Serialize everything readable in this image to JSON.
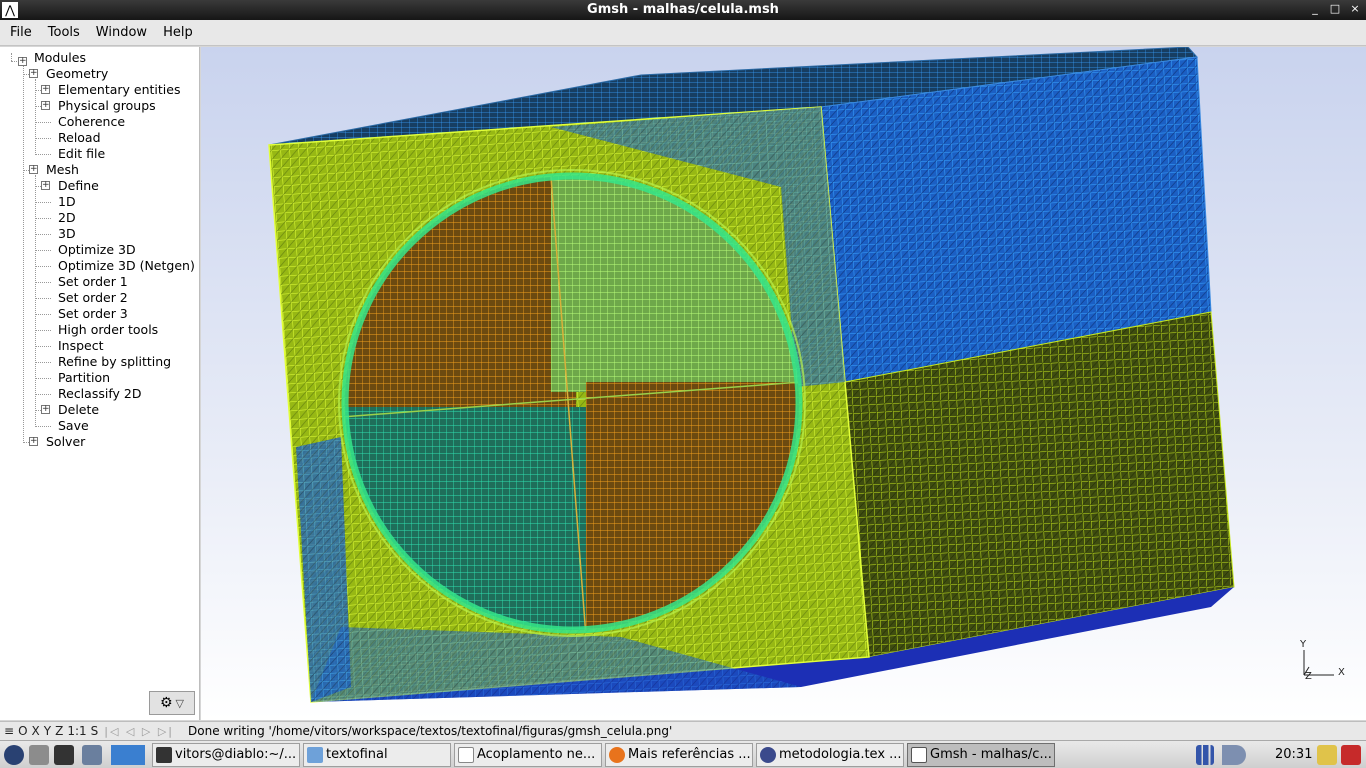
{
  "window": {
    "title": "Gmsh - malhas/celula.msh",
    "app_icon": "gmsh-logo-icon",
    "controls": [
      "_",
      "□",
      "×"
    ]
  },
  "menu": [
    "File",
    "Tools",
    "Window",
    "Help"
  ],
  "tree": {
    "modules": "Modules",
    "geometry": {
      "label": "Geometry",
      "items": [
        "Elementary entities",
        "Physical groups",
        "Coherence",
        "Reload",
        "Edit file"
      ]
    },
    "mesh": {
      "label": "Mesh",
      "items": [
        "Define",
        "1D",
        "2D",
        "3D",
        "Optimize 3D",
        "Optimize 3D (Netgen)",
        "Set order 1",
        "Set order 2",
        "Set order 3",
        "High order tools",
        "Inspect",
        "Refine by splitting",
        "Partition",
        "Reclassify 2D",
        "Delete",
        "Save"
      ]
    },
    "solver": "Solver"
  },
  "gear_button": {
    "icon": "gear-icon",
    "arrow": "▽"
  },
  "axes": {
    "y": "Y",
    "x": "X",
    "z": "Z"
  },
  "statusbar": {
    "menu_icon": "≡",
    "buttons": [
      "O",
      "X",
      "Y",
      "Z",
      "1:1",
      "S"
    ],
    "nav": "|◁ ◁ ▷ ▷|",
    "message": "Done writing '/home/vitors/workspace/textos/textofinal/figuras/gmsh_celula.png'"
  },
  "taskbar": {
    "tasks": [
      "vitors@diablo:~/...",
      "textofinal",
      "Acoplamento ne...",
      "Mais referências ...",
      "metodologia.tex ...",
      "Gmsh - malhas/c..."
    ],
    "clock": "20:31"
  },
  "colors": {
    "yellow_green": "#b7e31a",
    "blue": "#1f6fd6",
    "orange": "#f2a01e",
    "green": "#39e06f",
    "dark_olive": "#3d4a12"
  }
}
